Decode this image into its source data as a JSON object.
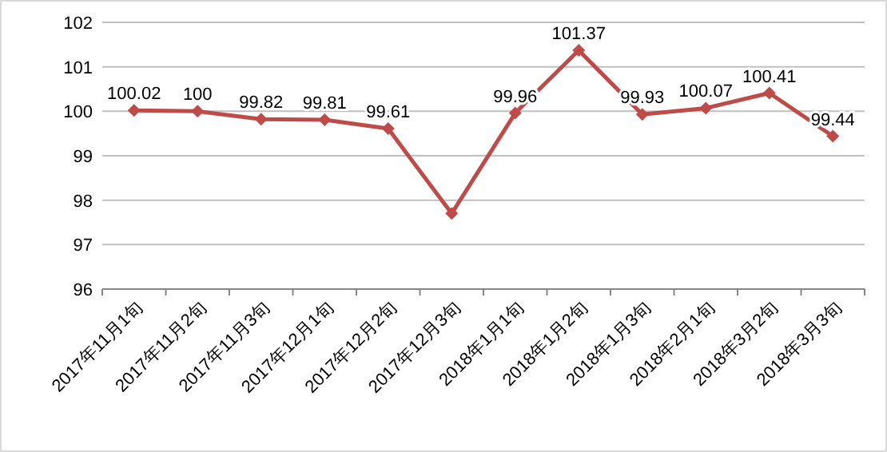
{
  "chart_data": {
    "type": "line",
    "categories": [
      "2017年11月1旬",
      "2017年11月2旬",
      "2017年11月3旬",
      "2017年12月1旬",
      "2017年12月2旬",
      "2017年12月3旬",
      "2018年1月1旬",
      "2018年1月2旬",
      "2018年1月3旬",
      "2018年2月1旬",
      "2018年3月2旬",
      "2018年3月3旬"
    ],
    "series": [
      {
        "color": "#be4b48",
        "values": [
          100.02,
          100,
          99.82,
          99.81,
          99.61,
          97.7,
          99.96,
          101.37,
          99.93,
          100.07,
          100.41,
          99.44
        ],
        "value_labels": [
          "100.02",
          "100",
          "99.82",
          "99.81",
          "99.61",
          null,
          "99.96",
          "101.37",
          "99.93",
          "100.07",
          "100.41",
          "99.44"
        ]
      }
    ],
    "ylim": [
      96,
      102
    ],
    "yticks": [
      96,
      97,
      98,
      99,
      100,
      101,
      102
    ],
    "grid": "y",
    "marker": "diamond",
    "line_style": "solid"
  }
}
